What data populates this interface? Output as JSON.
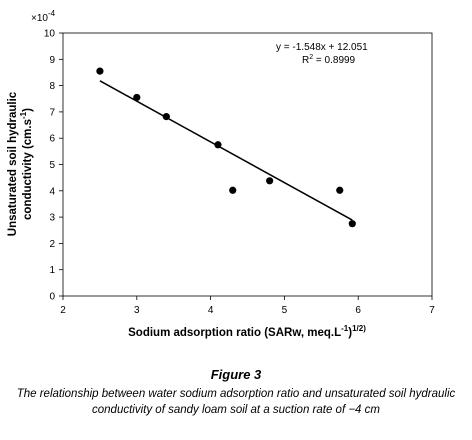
{
  "chart_data": {
    "type": "scatter",
    "x": [
      2.5,
      3.0,
      3.4,
      4.1,
      4.3,
      4.8,
      5.75,
      5.92
    ],
    "y": [
      8.55,
      7.55,
      6.82,
      5.75,
      4.02,
      4.38,
      4.02,
      2.75
    ],
    "trendline": {
      "x": [
        2.5,
        5.92
      ],
      "slope": -1.548,
      "intercept": 12.051
    },
    "equation": "y = -1.548x + 12.051",
    "r2_prefix": "R",
    "r2_suffix": " = 0.8999",
    "xlim": [
      2,
      7
    ],
    "ylim": [
      0,
      10
    ],
    "xticks": [
      2,
      3,
      4,
      5,
      6,
      7
    ],
    "yticks": [
      0,
      1,
      2,
      3,
      4,
      5,
      6,
      7,
      8,
      9,
      10
    ],
    "y_multiplier_base": "×10",
    "y_multiplier_exp": "-4",
    "xlabel_main": "Sodium adsorption ratio (SARw, meq.L",
    "xlabel_sup1": "-1",
    "xlabel_mid": ")",
    "xlabel_sup2": "1/2)",
    "ylabel_line1": "Unsaturated soil hydraulic",
    "ylabel_line2_main": "conductivity (cm.s",
    "ylabel_line2_sup": "-1",
    "ylabel_line2_end": ")"
  },
  "figure": {
    "label": "Figure 3",
    "caption": "The relationship between water sodium adsorption ratio and unsaturated soil hydraulic conductivity of sandy loam soil at a suction rate of −4 cm"
  }
}
